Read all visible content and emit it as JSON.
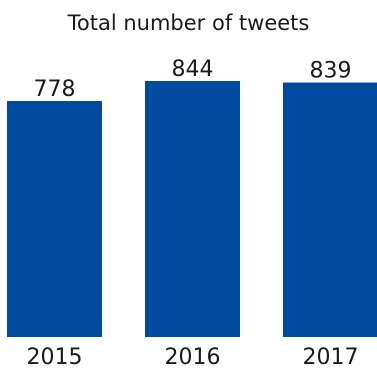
{
  "chart_data": {
    "type": "bar",
    "title": "Total number of tweets",
    "categories": [
      "2015",
      "2016",
      "2017"
    ],
    "values": [
      778,
      844,
      839
    ],
    "xlabel": "",
    "ylabel": "",
    "ylim": [
      0,
      844
    ],
    "grid": false,
    "bar_color": "#004b9f",
    "data_labels": true
  }
}
